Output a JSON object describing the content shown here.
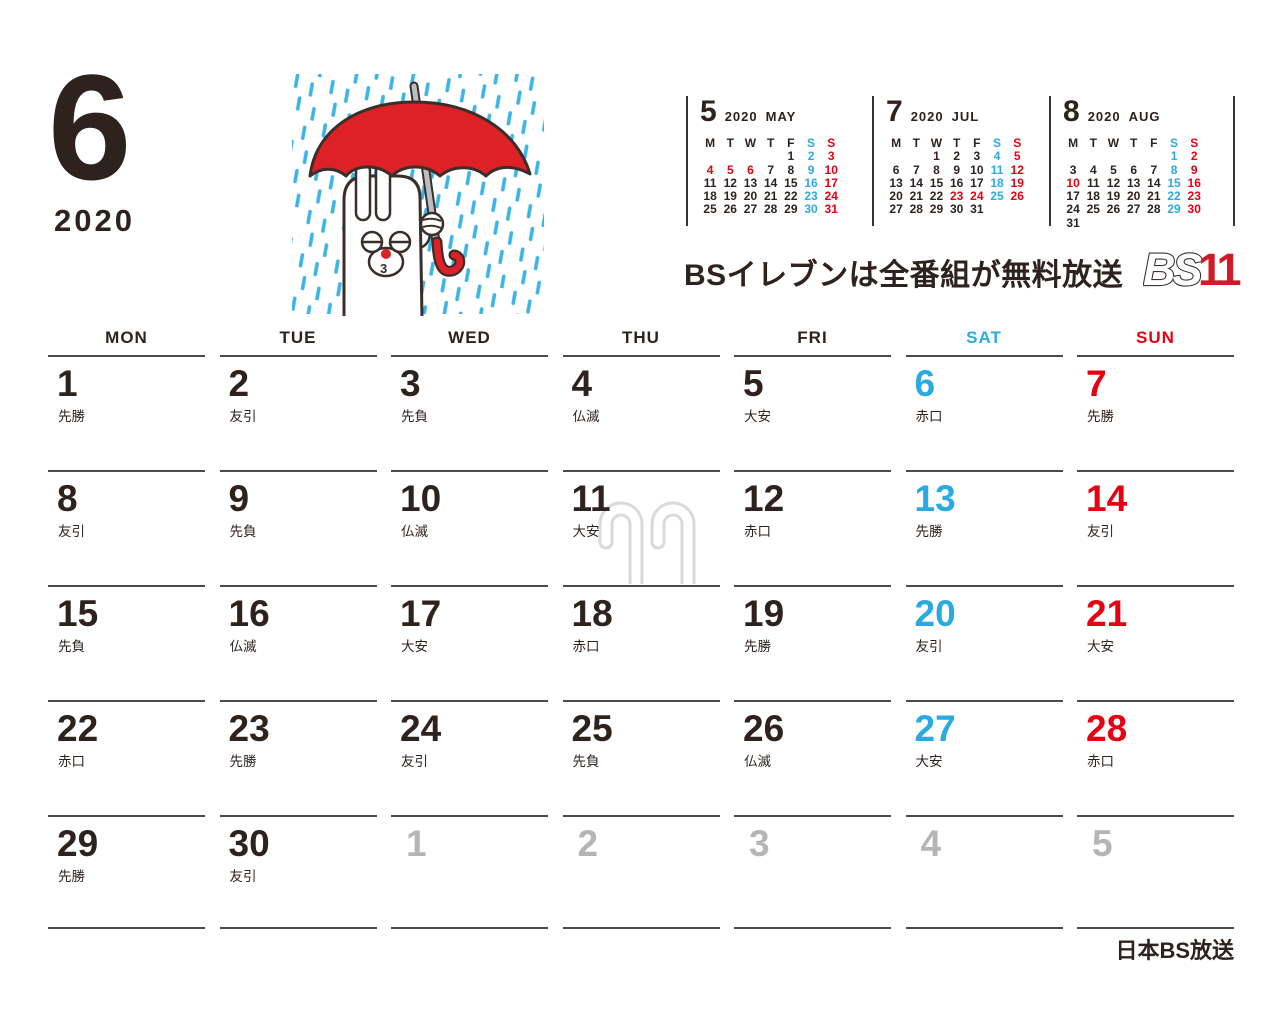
{
  "header": {
    "month_number": "6",
    "year": "2020"
  },
  "promo": {
    "text": "BSイレブンは全番組が無料放送",
    "logo_bs": "BS",
    "logo_11": "11"
  },
  "footer": {
    "company": "日本BS放送"
  },
  "colors": {
    "dark": "#2d221e",
    "blue": "#29abe2",
    "red": "#e60012",
    "gray": "#b5b5b5",
    "line": "#4d4a48",
    "umbrella_red": "#dd2127",
    "rain_blue": "#3cb4e6",
    "watermark_gray": "#dadada",
    "logo_red": "#cf1b29"
  },
  "mini_calendars": [
    {
      "month_number": "5",
      "year": "2020",
      "month_name": "MAY",
      "day_headers": [
        [
          "M",
          "k"
        ],
        [
          "T",
          "k"
        ],
        [
          "W",
          "k"
        ],
        [
          "T",
          "k"
        ],
        [
          "F",
          "k"
        ],
        [
          "S",
          "b"
        ],
        [
          "S",
          "r"
        ]
      ],
      "weeks": [
        [
          [
            "",
            ""
          ],
          [
            "",
            ""
          ],
          [
            "",
            ""
          ],
          [
            "",
            ""
          ],
          [
            "1",
            "k"
          ],
          [
            "2",
            "b"
          ],
          [
            "3",
            "r"
          ]
        ],
        [
          [
            "4",
            "r"
          ],
          [
            "5",
            "r"
          ],
          [
            "6",
            "r"
          ],
          [
            "7",
            "k"
          ],
          [
            "8",
            "k"
          ],
          [
            "9",
            "b"
          ],
          [
            "10",
            "r"
          ]
        ],
        [
          [
            "11",
            "k"
          ],
          [
            "12",
            "k"
          ],
          [
            "13",
            "k"
          ],
          [
            "14",
            "k"
          ],
          [
            "15",
            "k"
          ],
          [
            "16",
            "b"
          ],
          [
            "17",
            "r"
          ]
        ],
        [
          [
            "18",
            "k"
          ],
          [
            "19",
            "k"
          ],
          [
            "20",
            "k"
          ],
          [
            "21",
            "k"
          ],
          [
            "22",
            "k"
          ],
          [
            "23",
            "b"
          ],
          [
            "24",
            "r"
          ]
        ],
        [
          [
            "25",
            "k"
          ],
          [
            "26",
            "k"
          ],
          [
            "27",
            "k"
          ],
          [
            "28",
            "k"
          ],
          [
            "29",
            "k"
          ],
          [
            "30",
            "b"
          ],
          [
            "31",
            "r"
          ]
        ]
      ]
    },
    {
      "month_number": "7",
      "year": "2020",
      "month_name": "JUL",
      "day_headers": [
        [
          "M",
          "k"
        ],
        [
          "T",
          "k"
        ],
        [
          "W",
          "k"
        ],
        [
          "T",
          "k"
        ],
        [
          "F",
          "k"
        ],
        [
          "S",
          "b"
        ],
        [
          "S",
          "r"
        ]
      ],
      "weeks": [
        [
          [
            "",
            ""
          ],
          [
            "",
            ""
          ],
          [
            "1",
            "k"
          ],
          [
            "2",
            "k"
          ],
          [
            "3",
            "k"
          ],
          [
            "4",
            "b"
          ],
          [
            "5",
            "r"
          ]
        ],
        [
          [
            "6",
            "k"
          ],
          [
            "7",
            "k"
          ],
          [
            "8",
            "k"
          ],
          [
            "9",
            "k"
          ],
          [
            "10",
            "k"
          ],
          [
            "11",
            "b"
          ],
          [
            "12",
            "r"
          ]
        ],
        [
          [
            "13",
            "k"
          ],
          [
            "14",
            "k"
          ],
          [
            "15",
            "k"
          ],
          [
            "16",
            "k"
          ],
          [
            "17",
            "k"
          ],
          [
            "18",
            "b"
          ],
          [
            "19",
            "r"
          ]
        ],
        [
          [
            "20",
            "k"
          ],
          [
            "21",
            "k"
          ],
          [
            "22",
            "k"
          ],
          [
            "23",
            "r"
          ],
          [
            "24",
            "r"
          ],
          [
            "25",
            "b"
          ],
          [
            "26",
            "r"
          ]
        ],
        [
          [
            "27",
            "k"
          ],
          [
            "28",
            "k"
          ],
          [
            "29",
            "k"
          ],
          [
            "30",
            "k"
          ],
          [
            "31",
            "k"
          ],
          [
            "",
            ""
          ],
          [
            "",
            ""
          ]
        ]
      ]
    },
    {
      "month_number": "8",
      "year": "2020",
      "month_name": "AUG",
      "day_headers": [
        [
          "M",
          "k"
        ],
        [
          "T",
          "k"
        ],
        [
          "W",
          "k"
        ],
        [
          "T",
          "k"
        ],
        [
          "F",
          "k"
        ],
        [
          "S",
          "b"
        ],
        [
          "S",
          "r"
        ]
      ],
      "weeks": [
        [
          [
            "",
            ""
          ],
          [
            "",
            ""
          ],
          [
            "",
            ""
          ],
          [
            "",
            ""
          ],
          [
            "",
            ""
          ],
          [
            "1",
            "b"
          ],
          [
            "2",
            "r"
          ]
        ],
        [
          [
            "3",
            "k"
          ],
          [
            "4",
            "k"
          ],
          [
            "5",
            "k"
          ],
          [
            "6",
            "k"
          ],
          [
            "7",
            "k"
          ],
          [
            "8",
            "b"
          ],
          [
            "9",
            "r"
          ]
        ],
        [
          [
            "10",
            "r"
          ],
          [
            "11",
            "k"
          ],
          [
            "12",
            "k"
          ],
          [
            "13",
            "k"
          ],
          [
            "14",
            "k"
          ],
          [
            "15",
            "b"
          ],
          [
            "16",
            "r"
          ]
        ],
        [
          [
            "17",
            "k"
          ],
          [
            "18",
            "k"
          ],
          [
            "19",
            "k"
          ],
          [
            "20",
            "k"
          ],
          [
            "21",
            "k"
          ],
          [
            "22",
            "b"
          ],
          [
            "23",
            "r"
          ]
        ],
        [
          [
            "24",
            "k"
          ],
          [
            "25",
            "k"
          ],
          [
            "26",
            "k"
          ],
          [
            "27",
            "k"
          ],
          [
            "28",
            "k"
          ],
          [
            "29",
            "b"
          ],
          [
            "30",
            "r"
          ]
        ],
        [
          [
            "31",
            "k"
          ],
          [
            "",
            ""
          ],
          [
            "",
            ""
          ],
          [
            "",
            ""
          ],
          [
            "",
            ""
          ],
          [
            "",
            ""
          ],
          [
            "",
            ""
          ]
        ]
      ]
    }
  ],
  "main_calendar": {
    "day_headers": [
      [
        "MON",
        "k"
      ],
      [
        "TUE",
        "k"
      ],
      [
        "WED",
        "k"
      ],
      [
        "THU",
        "k"
      ],
      [
        "FRI",
        "k"
      ],
      [
        "SAT",
        "b"
      ],
      [
        "SUN",
        "r"
      ]
    ],
    "weeks": [
      [
        {
          "d": "1",
          "r": "先勝",
          "c": "k"
        },
        {
          "d": "2",
          "r": "友引",
          "c": "k"
        },
        {
          "d": "3",
          "r": "先負",
          "c": "k"
        },
        {
          "d": "4",
          "r": "仏滅",
          "c": "k"
        },
        {
          "d": "5",
          "r": "大安",
          "c": "k"
        },
        {
          "d": "6",
          "r": "赤口",
          "c": "b"
        },
        {
          "d": "7",
          "r": "先勝",
          "c": "r"
        }
      ],
      [
        {
          "d": "8",
          "r": "友引",
          "c": "k"
        },
        {
          "d": "9",
          "r": "先負",
          "c": "k"
        },
        {
          "d": "10",
          "r": "仏滅",
          "c": "k"
        },
        {
          "d": "11",
          "r": "大安",
          "c": "k"
        },
        {
          "d": "12",
          "r": "赤口",
          "c": "k"
        },
        {
          "d": "13",
          "r": "先勝",
          "c": "b"
        },
        {
          "d": "14",
          "r": "友引",
          "c": "r"
        }
      ],
      [
        {
          "d": "15",
          "r": "先負",
          "c": "k"
        },
        {
          "d": "16",
          "r": "仏滅",
          "c": "k"
        },
        {
          "d": "17",
          "r": "大安",
          "c": "k"
        },
        {
          "d": "18",
          "r": "赤口",
          "c": "k"
        },
        {
          "d": "19",
          "r": "先勝",
          "c": "k"
        },
        {
          "d": "20",
          "r": "友引",
          "c": "b"
        },
        {
          "d": "21",
          "r": "大安",
          "c": "r"
        }
      ],
      [
        {
          "d": "22",
          "r": "赤口",
          "c": "k"
        },
        {
          "d": "23",
          "r": "先勝",
          "c": "k"
        },
        {
          "d": "24",
          "r": "友引",
          "c": "k"
        },
        {
          "d": "25",
          "r": "先負",
          "c": "k"
        },
        {
          "d": "26",
          "r": "仏滅",
          "c": "k"
        },
        {
          "d": "27",
          "r": "大安",
          "c": "b"
        },
        {
          "d": "28",
          "r": "赤口",
          "c": "r"
        }
      ],
      [
        {
          "d": "29",
          "r": "先勝",
          "c": "k"
        },
        {
          "d": "30",
          "r": "友引",
          "c": "k"
        },
        {
          "d": "1",
          "r": "",
          "c": "g"
        },
        {
          "d": "2",
          "r": "",
          "c": "g"
        },
        {
          "d": "3",
          "r": "",
          "c": "g"
        },
        {
          "d": "4",
          "r": "",
          "c": "g"
        },
        {
          "d": "5",
          "r": "",
          "c": "g"
        }
      ]
    ]
  }
}
